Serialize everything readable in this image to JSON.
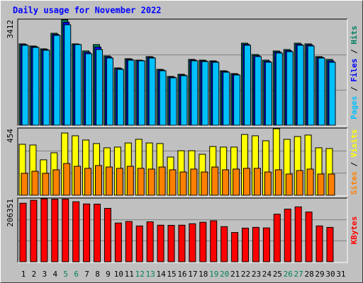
{
  "chart_data": [
    {
      "type": "bar",
      "title": "Daily usage for November 2022",
      "legend_separator": " / ",
      "ylim": [
        0,
        3412
      ],
      "yticks": [
        3412
      ],
      "ygrid": [
        1137.3,
        2274.7
      ],
      "series": [
        {
          "name": "Hits",
          "color": "#008060",
          "values": [
            2634,
            2565,
            2473,
            2977,
            3412,
            2634,
            2404,
            2611,
            2244,
            1855,
            2153,
            2107,
            2221,
            1809,
            1580,
            1649,
            2130,
            2107,
            2084,
            1763,
            1672,
            2656,
            2290,
            2107,
            2404,
            2450,
            2656,
            2634,
            2221,
            2130,
            null
          ]
        },
        {
          "name": "Files",
          "color": "#0000ff",
          "values": [
            2611,
            2542,
            2450,
            2942,
            3330,
            2620,
            2358,
            2530,
            2210,
            1832,
            2130,
            2095,
            2198,
            1786,
            1557,
            1626,
            2107,
            2084,
            2061,
            1740,
            1649,
            2622,
            2255,
            2072,
            2370,
            2415,
            2622,
            2600,
            2198,
            2084,
            null
          ]
        },
        {
          "name": "Pages",
          "color": "#00c0ff",
          "values": [
            2588,
            2519,
            2427,
            2908,
            3252,
            2611,
            2313,
            2450,
            2175,
            1809,
            2107,
            2084,
            2175,
            1763,
            1534,
            1603,
            2084,
            2061,
            2038,
            1717,
            1626,
            2588,
            2221,
            2038,
            2336,
            2381,
            2588,
            2565,
            2175,
            2038,
            null
          ]
        }
      ]
    },
    {
      "type": "bar",
      "legend_separator": " / ",
      "ylim": [
        0,
        454
      ],
      "yticks": [
        454
      ],
      "ygrid": [
        151.3,
        302.7
      ],
      "series": [
        {
          "name": "Visits",
          "color": "#ffff00",
          "values": [
            348,
            343,
            242,
            290,
            425,
            406,
            377,
            353,
            324,
            329,
            357,
            382,
            357,
            353,
            261,
            304,
            304,
            280,
            333,
            329,
            329,
            415,
            406,
            372,
            454,
            382,
            401,
            411,
            324,
            319,
            null
          ]
        },
        {
          "name": "Sites",
          "color": "#ff8000",
          "values": [
            150,
            164,
            150,
            174,
            217,
            198,
            184,
            203,
            193,
            184,
            198,
            184,
            179,
            193,
            174,
            159,
            179,
            159,
            193,
            174,
            179,
            184,
            184,
            159,
            174,
            145,
            169,
            179,
            145,
            145,
            null
          ]
        }
      ]
    },
    {
      "type": "bar",
      "ylim": [
        0,
        206351
      ],
      "yticks": [
        206351
      ],
      "ygrid": [
        68783.7,
        137567.3
      ],
      "categories": [
        "1",
        "2",
        "3",
        "4",
        "5",
        "6",
        "7",
        "8",
        "9",
        "10",
        "11",
        "12",
        "13",
        "14",
        "15",
        "16",
        "17",
        "18",
        "19",
        "20",
        "21",
        "22",
        "23",
        "24",
        "25",
        "26",
        "27",
        "28",
        "29",
        "30",
        "31"
      ],
      "category_colors": [
        "#000000",
        "#000000",
        "#000000",
        "#000000",
        "#00805c",
        "#00805c",
        "#000000",
        "#000000",
        "#000000",
        "#000000",
        "#000000",
        "#00805c",
        "#00805c",
        "#000000",
        "#000000",
        "#000000",
        "#000000",
        "#000000",
        "#00805c",
        "#00805c",
        "#000000",
        "#000000",
        "#000000",
        "#000000",
        "#000000",
        "#00805c",
        "#00805c",
        "#000000",
        "#000000",
        "#000000",
        "#000000"
      ],
      "series": [
        {
          "name": "KBytes",
          "color": "#ff0000",
          "values": [
            191920,
            201516,
            206351,
            205000,
            205500,
            196718,
            189521,
            189000,
            175127,
            127147,
            131945,
            117551,
            131000,
            119950,
            119500,
            120000,
            124748,
            129546,
            134344,
            115152,
            95960,
            110354,
            112753,
            111000,
            155935,
            172728,
            179925,
            163132,
            117551,
            112753,
            null
          ]
        }
      ]
    }
  ]
}
